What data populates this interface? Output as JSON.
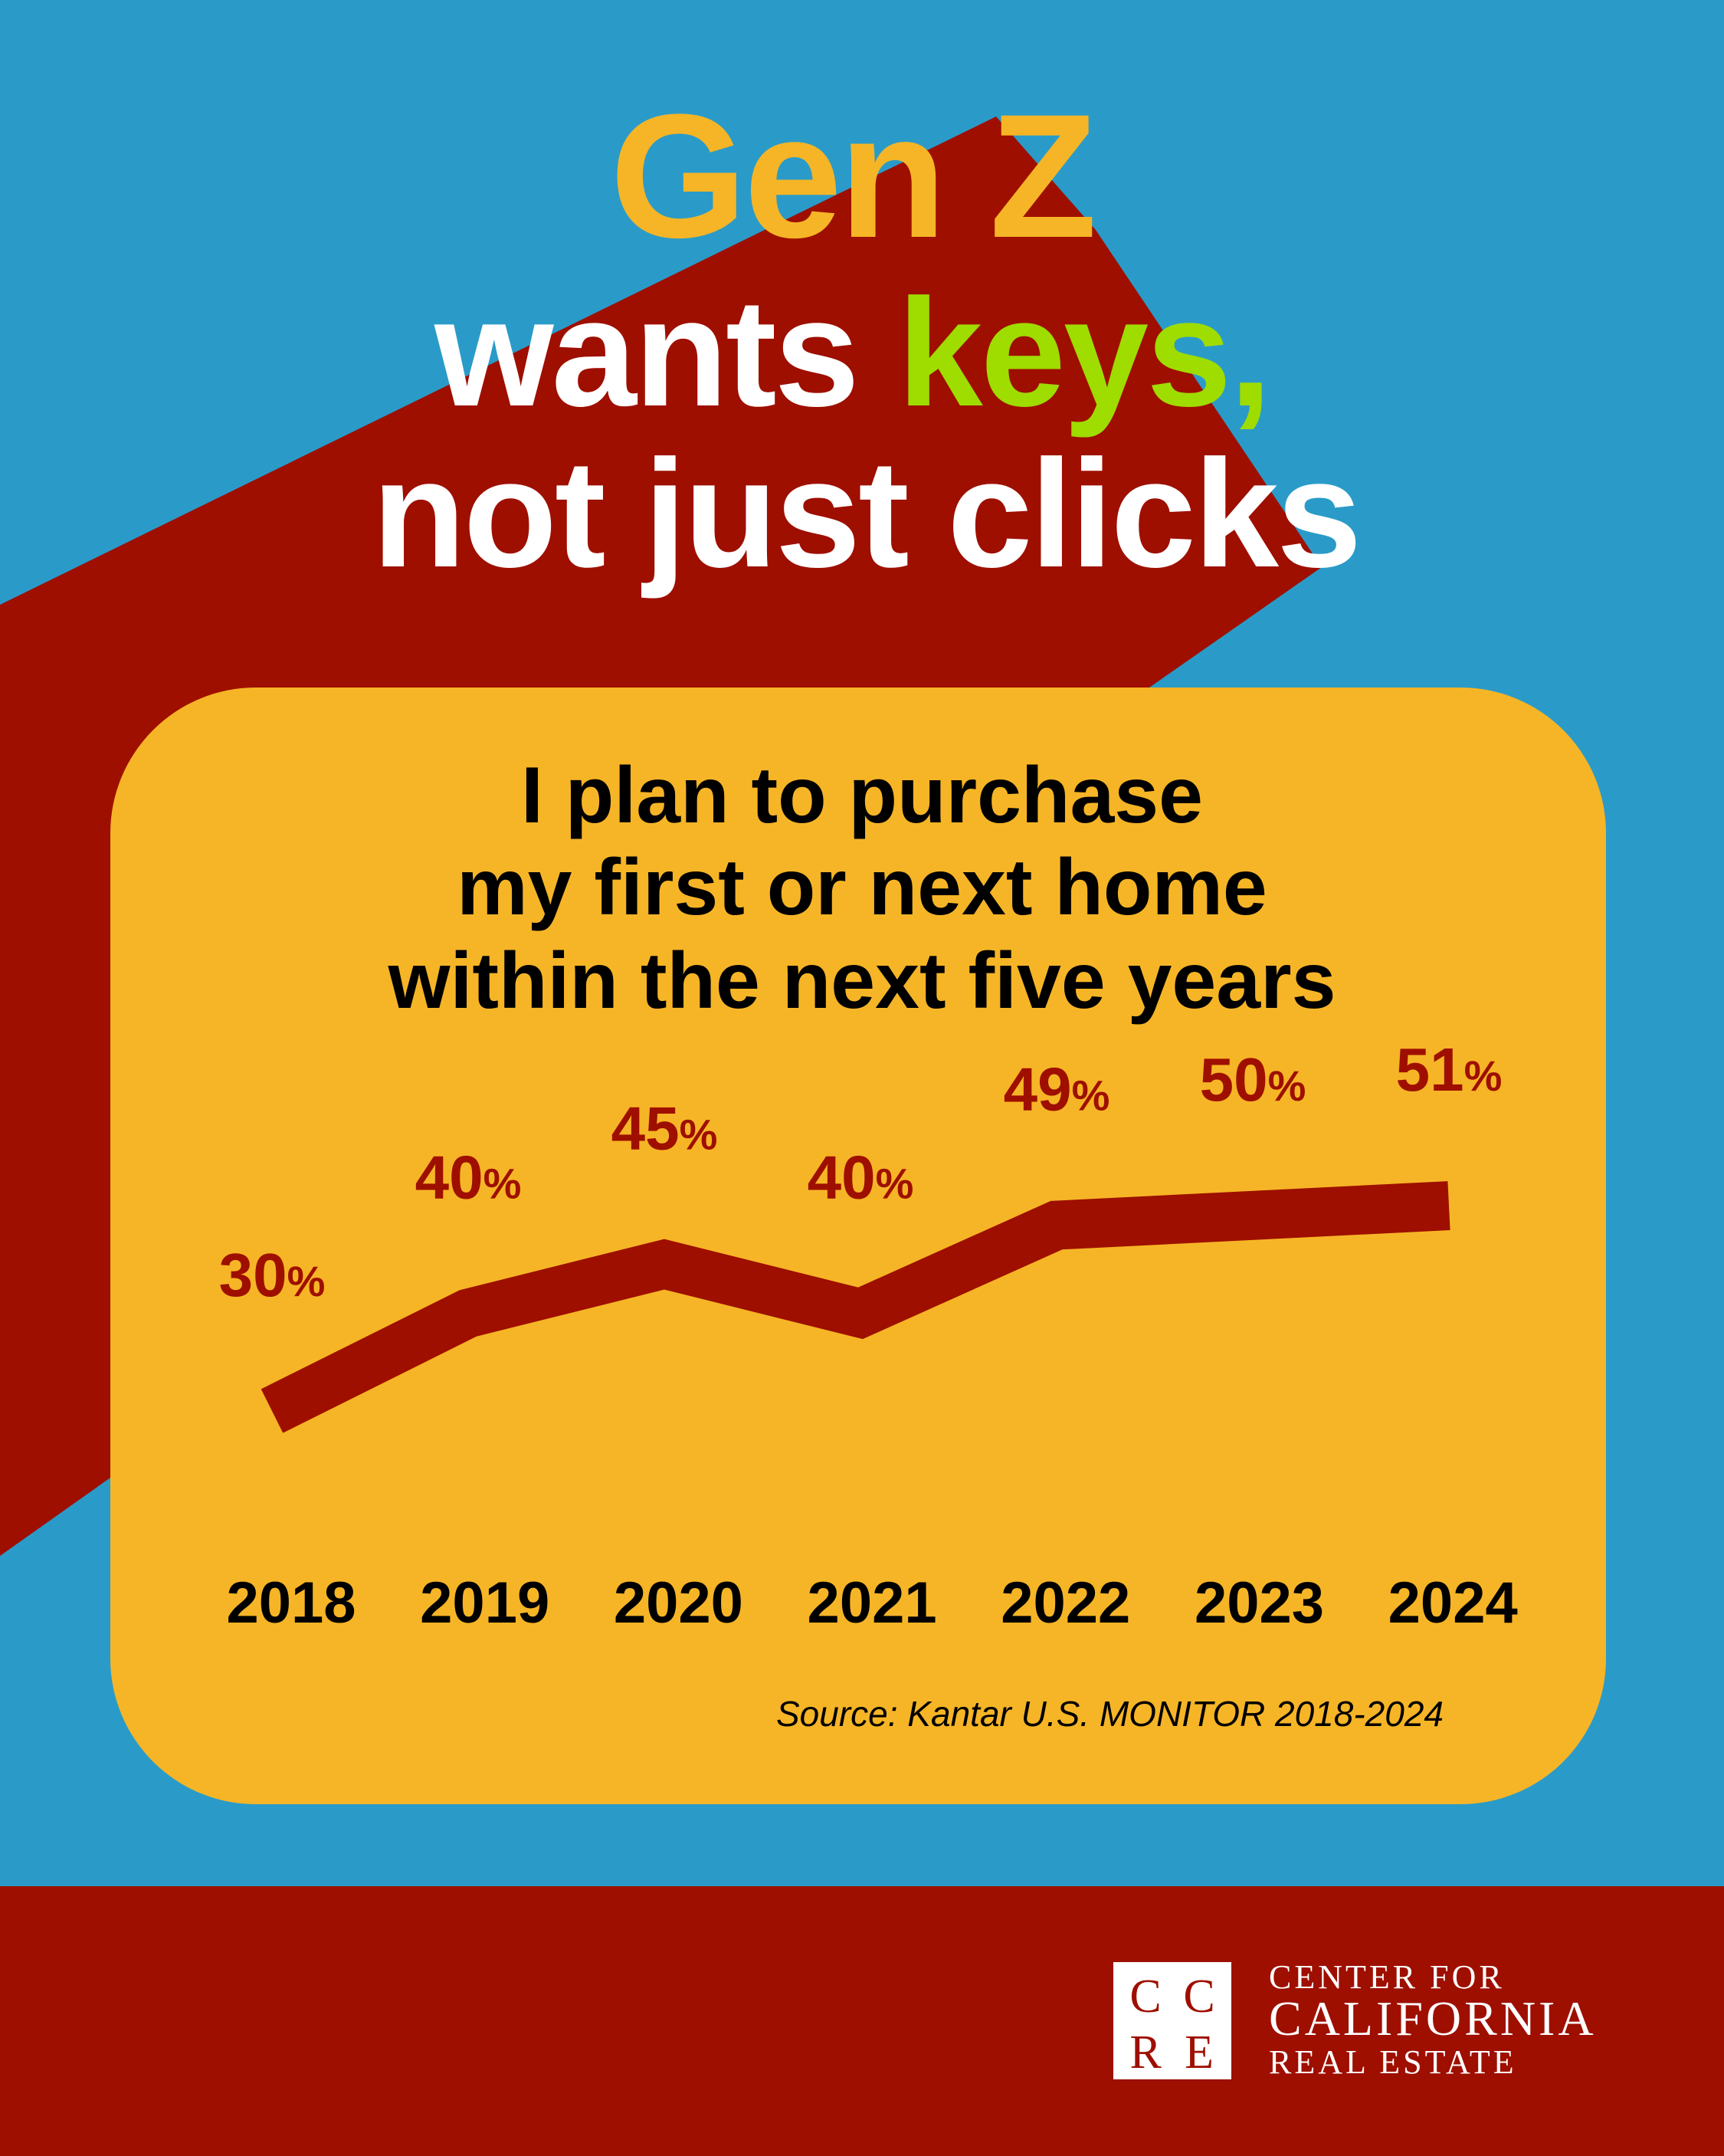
{
  "headline": {
    "line1": "Gen Z",
    "line2_a": "wants ",
    "line2_b": "keys,",
    "line3": "not just clicks"
  },
  "colors": {
    "background": "#2a9bc8",
    "band": "#9e0f00",
    "panel": "#f6b526",
    "accent_green": "#9fdc00",
    "text_dark": "#000000",
    "text_light": "#ffffff"
  },
  "chart_data": {
    "type": "line",
    "title_lines": [
      "I plan to purchase",
      "my first or next home",
      "within the next five years"
    ],
    "categories": [
      "2018",
      "2019",
      "2020",
      "2021",
      "2022",
      "2023",
      "2024"
    ],
    "values": [
      30,
      40,
      45,
      40,
      49,
      50,
      51
    ],
    "unit": "%",
    "grid": false,
    "series_color": "#9e0f00",
    "source": "Source: Kantar U.S. MONITOR 2018-2024"
  },
  "footer": {
    "logo_letters": "CCRE",
    "org_line1": "CENTER FOR",
    "org_line2": "CALIFORNIA",
    "org_line3": "REAL ESTATE"
  }
}
